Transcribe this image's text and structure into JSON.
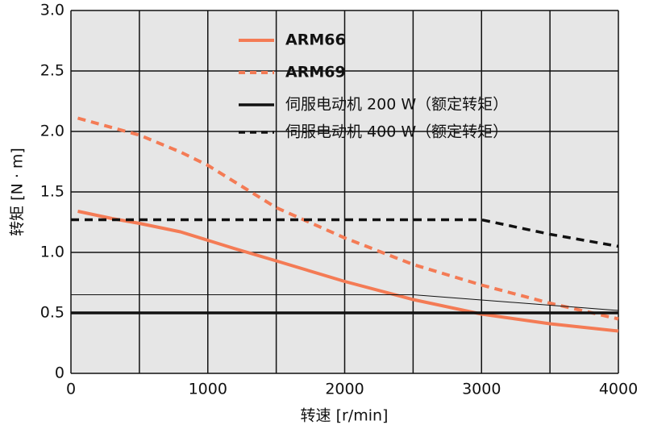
{
  "chart_data": {
    "type": "line",
    "x_label": "转速 [r/min]",
    "y_label": "转矩 [N · m]",
    "xlim": [
      0,
      4000
    ],
    "ylim": [
      0,
      3.0
    ],
    "xticks": [
      0,
      1000,
      2000,
      3000,
      4000
    ],
    "x_minor_grid": [
      500,
      1500,
      2500,
      3500
    ],
    "yticks": [
      0,
      0.5,
      {
        "value": 1.0,
        "label": "1.0"
      },
      1.5,
      {
        "value": 2.0,
        "label": "2.0"
      },
      2.5,
      {
        "value": 3.0,
        "label": "3.0"
      }
    ],
    "grid": true,
    "series": [
      {
        "name": "ARM66",
        "color": "#f47b55",
        "style": "solid",
        "linewidth": 4,
        "legend_bold": true,
        "x": [
          50,
          300,
          500,
          800,
          1000,
          1200,
          1500,
          2000,
          2500,
          3000,
          3500,
          4000
        ],
        "values": [
          1.34,
          1.28,
          1.24,
          1.17,
          1.1,
          1.03,
          0.93,
          0.76,
          0.61,
          0.49,
          0.41,
          0.35
        ]
      },
      {
        "name": "ARM69",
        "color": "#f47b55",
        "style": "dashed",
        "linewidth": 4,
        "legend_bold": true,
        "x": [
          50,
          500,
          800,
          1000,
          1200,
          1500,
          2000,
          2500,
          3000,
          3500,
          4000
        ],
        "values": [
          2.11,
          1.97,
          1.83,
          1.72,
          1.58,
          1.37,
          1.12,
          0.9,
          0.73,
          0.58,
          0.45
        ]
      },
      {
        "name": "伺服电动机 200 W（额定转矩）",
        "color": "#111111",
        "style": "solid",
        "linewidth": 3.5,
        "legend_bold": false,
        "x": [
          0,
          4000
        ],
        "values": [
          0.5,
          0.5
        ]
      },
      {
        "name": "伺服电动机 400 W（额定转矩）",
        "color": "#111111",
        "style": "dashed",
        "linewidth": 3.5,
        "legend_bold": false,
        "x": [
          0,
          3000,
          3500,
          4000
        ],
        "values": [
          1.27,
          1.27,
          1.15,
          1.05
        ]
      },
      {
        "color": "#111111",
        "style": "solid",
        "linewidth": 1,
        "x": [
          0,
          2500,
          4000
        ],
        "values": [
          0.65,
          0.65,
          0.52
        ]
      }
    ]
  }
}
